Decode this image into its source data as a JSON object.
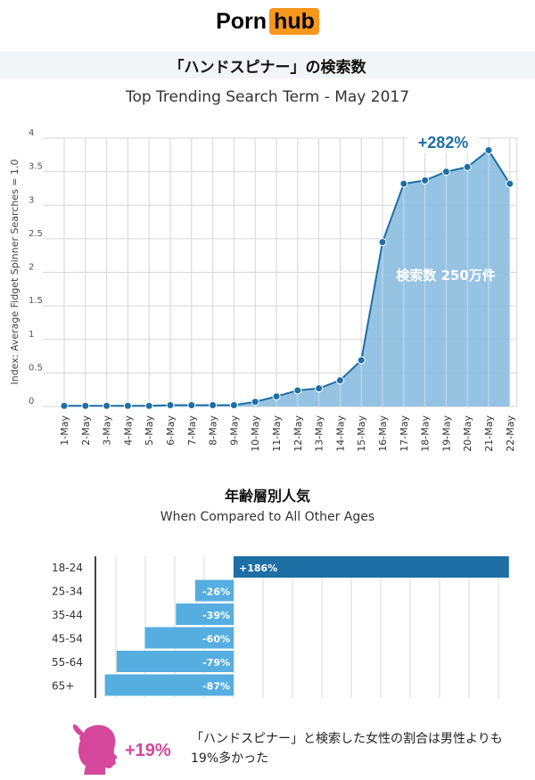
{
  "logo": {
    "left": "Porn",
    "right": "hub"
  },
  "title": "「ハンドスピナー」の検索数",
  "subtitle": "Top Trending Search Term - May 2017",
  "colors": {
    "line": "#1d6fa5",
    "area": "#8cbde0",
    "bar_top": "#1d6fa5",
    "bar": "#56aee0",
    "accent": "#d6489b"
  },
  "chart_data": [
    {
      "type": "area",
      "title": "Top Trending Search Term - May 2017",
      "ylabel": "Index: Average Fidget Spinner Searches = 1.0",
      "xlabel": "",
      "ylim": [
        0,
        4
      ],
      "yticks": [
        "0",
        "0.5",
        "1",
        "1.5",
        "2",
        "2.5",
        "3",
        "3.5",
        "4"
      ],
      "grid": true,
      "categories": [
        "1-May",
        "2-May",
        "3-May",
        "4-May",
        "5-May",
        "6-May",
        "7-May",
        "8-May",
        "9-May",
        "10-May",
        "11-May",
        "12-May",
        "13-May",
        "14-May",
        "15-May",
        "16-May",
        "17-May",
        "18-May",
        "19-May",
        "20-May",
        "21-May",
        "22-May"
      ],
      "values": [
        0.01,
        0.01,
        0.01,
        0.01,
        0.01,
        0.02,
        0.02,
        0.02,
        0.02,
        0.07,
        0.15,
        0.24,
        0.27,
        0.39,
        0.69,
        2.45,
        3.32,
        3.37,
        3.5,
        3.57,
        3.82,
        3.32
      ],
      "annotations": {
        "peak": "+282%",
        "volume": "検索数 250万件"
      }
    },
    {
      "type": "bar",
      "title": "年齢層別人気",
      "subtitle": "When Compared to All Other Ages",
      "categories": [
        "18-24",
        "25-34",
        "35-44",
        "45-54",
        "55-64",
        "65+"
      ],
      "values": [
        186,
        -26,
        -39,
        -60,
        -79,
        -87
      ],
      "labels": [
        "+186%",
        "-26%",
        "-39%",
        "-60%",
        "-79%",
        "-87%"
      ]
    }
  ],
  "footer": {
    "percent": "+19%",
    "text": "「ハンドスピナー」と検索した女性の割合は男性よりも19%多かった"
  }
}
